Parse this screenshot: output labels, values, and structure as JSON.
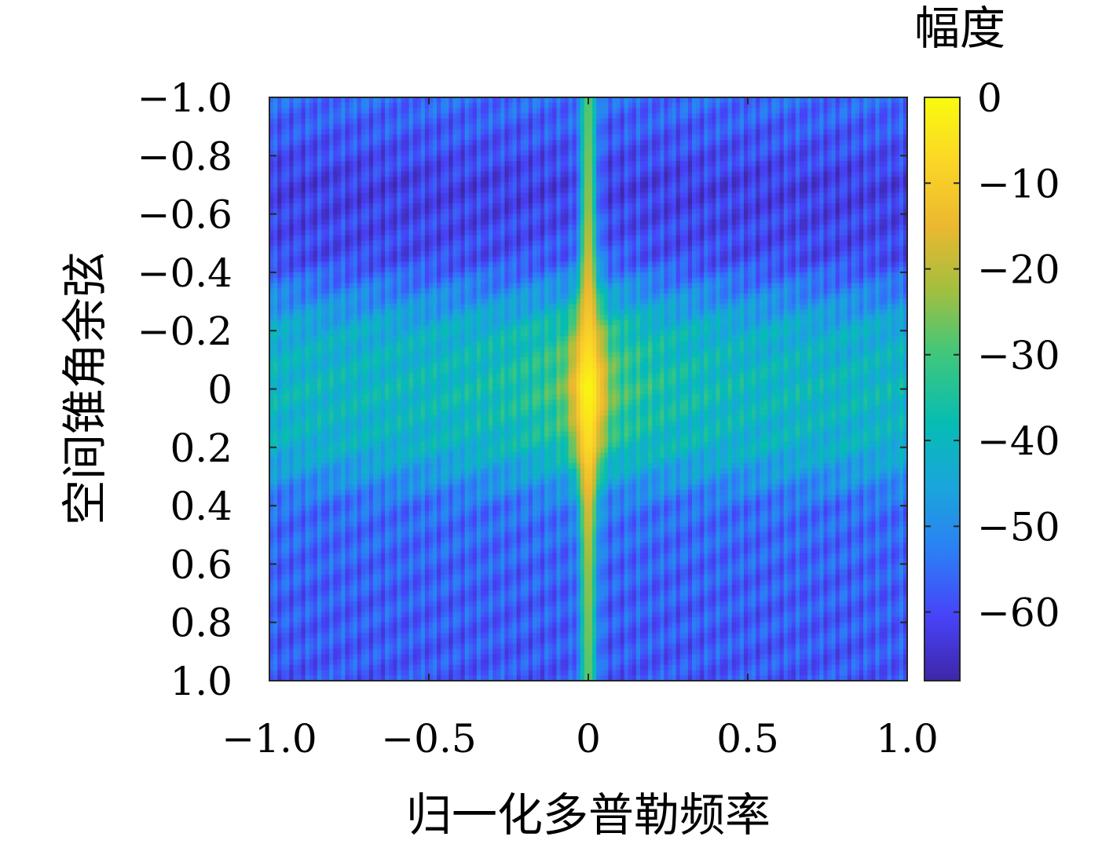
{
  "chart_data": {
    "type": "heatmap",
    "title": "",
    "xlabel": "归一化多普勒频率",
    "ylabel": "空间锥角余弦",
    "colorbar_label": "幅度",
    "xlim": [
      -1.0,
      1.0
    ],
    "ylim": [
      -1.0,
      1.0
    ],
    "y_axis_reversed": true,
    "clim": [
      -68,
      0
    ],
    "x_ticks": [
      -1.0,
      -0.5,
      0,
      0.5,
      1.0
    ],
    "x_tick_labels": [
      "−1.0",
      "−0.5",
      "0",
      "0.5",
      "1.0"
    ],
    "y_ticks": [
      -1.0,
      -0.8,
      -0.6,
      -0.4,
      -0.2,
      0,
      0.2,
      0.4,
      0.6,
      0.8,
      1.0
    ],
    "y_tick_labels": [
      "−1.0",
      "−0.8",
      "−0.6",
      "−0.4",
      "−0.2",
      "0",
      "0.2",
      "0.4",
      "0.6",
      "0.8",
      "1.0"
    ],
    "colorbar_ticks": [
      0,
      -10,
      -20,
      -30,
      -40,
      -50,
      -60
    ],
    "colorbar_tick_labels": [
      "0",
      "−10",
      "−20",
      "−30",
      "−40",
      "−50",
      "−60"
    ],
    "colormap": "parula",
    "colormap_stops": [
      "#3e26a8",
      "#4743f8",
      "#2c7ef6",
      "#1aa5db",
      "#06bcb4",
      "#3fc77c",
      "#a3bf3f",
      "#ecb830",
      "#fbd626",
      "#f9fb0e"
    ],
    "peak": {
      "x": 0.0,
      "y": 0.0,
      "value": 0
    },
    "ridge": {
      "x": 0.0,
      "description_values": [
        {
          "y": -1.0,
          "value": -28
        },
        {
          "y": -0.6,
          "value": -22
        },
        {
          "y": -0.4,
          "value": -16
        },
        {
          "y": -0.2,
          "value": -9
        },
        {
          "y": 0.0,
          "value": -1
        },
        {
          "y": 0.2,
          "value": -7
        },
        {
          "y": 0.4,
          "value": -16
        },
        {
          "y": 0.6,
          "value": -22
        },
        {
          "y": 1.0,
          "value": -27
        }
      ]
    },
    "background_rows": [
      {
        "y": -1.0,
        "value": -55
      },
      {
        "y": -0.7,
        "value": -62
      },
      {
        "y": -0.45,
        "value": -60
      },
      {
        "y": -0.2,
        "value": -43
      },
      {
        "y": 0.0,
        "value": -40
      },
      {
        "y": 0.2,
        "value": -42
      },
      {
        "y": 0.4,
        "value": -55
      },
      {
        "y": 0.7,
        "value": -57
      },
      {
        "y": 1.0,
        "value": -58
      }
    ]
  }
}
